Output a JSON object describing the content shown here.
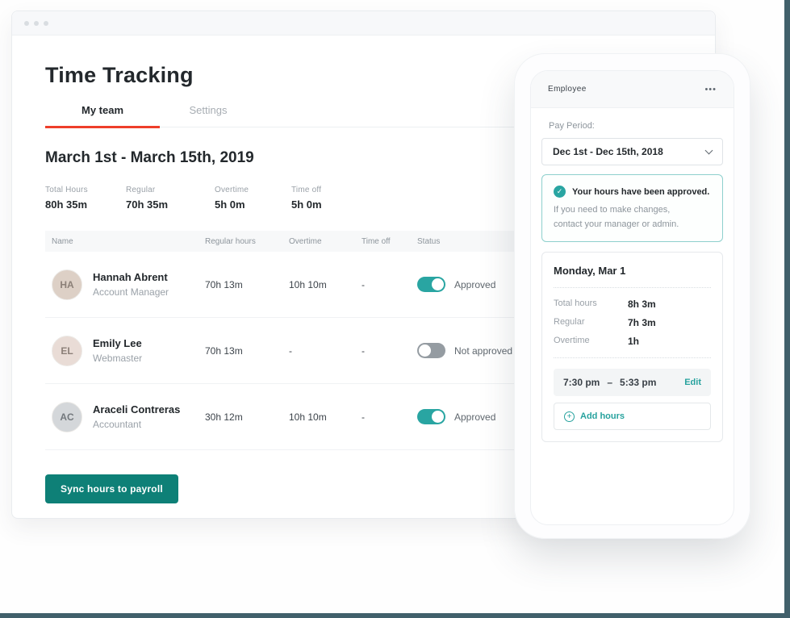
{
  "window": {
    "title": "Time Tracking",
    "tabs": [
      {
        "label": "My team",
        "active": true
      },
      {
        "label": "Settings",
        "active": false
      }
    ],
    "period_heading": "March 1st - March 15th, 2019",
    "summary": [
      {
        "label": "Total Hours",
        "value": "80h 35m"
      },
      {
        "label": "Regular",
        "value": "70h 35m"
      },
      {
        "label": "Overtime",
        "value": "5h 0m"
      },
      {
        "label": "Time off",
        "value": "5h 0m"
      }
    ],
    "table": {
      "headers": [
        "Name",
        "Regular hours",
        "Overtime",
        "Time off",
        "Status"
      ],
      "rows": [
        {
          "name": "Hannah Abrent",
          "role": "Account Manager",
          "initials": "HA",
          "regular": "70h 13m",
          "overtime": "10h 10m",
          "timeoff": "-",
          "approved": true,
          "status_label": "Approved"
        },
        {
          "name": "Emily Lee",
          "role": "Webmaster",
          "initials": "EL",
          "regular": "70h 13m",
          "overtime": "-",
          "timeoff": "-",
          "approved": false,
          "status_label": "Not approved"
        },
        {
          "name": "Araceli Contreras",
          "role": "Accountant",
          "initials": "AC",
          "regular": "30h 12m",
          "overtime": "10h 10m",
          "timeoff": "-",
          "approved": true,
          "status_label": "Approved"
        }
      ]
    },
    "sync_button": "Sync hours to payroll"
  },
  "phone": {
    "header": {
      "title": "Employee",
      "menu_icon": "•••"
    },
    "pay_period_label": "Pay Period:",
    "pay_period_value": "Dec 1st - Dec 15th, 2018",
    "approval_notice": {
      "title": "Your hours have been approved.",
      "body_line1": "If you need to make changes,",
      "body_line2": "contact your manager or admin."
    },
    "day_card": {
      "title": "Monday, Mar 1",
      "stats": [
        {
          "label": "Total hours",
          "value": "8h 3m"
        },
        {
          "label": "Regular",
          "value": "7h 3m"
        },
        {
          "label": "Overtime",
          "value": "1h"
        }
      ],
      "time_entry": {
        "start": "7:30 pm",
        "separator": "–",
        "end": "5:33 pm",
        "edit_label": "Edit"
      },
      "add_hours_label": "Add hours"
    }
  },
  "icons": {
    "check": "✓",
    "plus": "+"
  },
  "colors": {
    "accent_teal": "#29a5a2",
    "button_teal": "#0e8077",
    "tab_red": "#ee3e2a",
    "edge_slate": "#41606b"
  }
}
